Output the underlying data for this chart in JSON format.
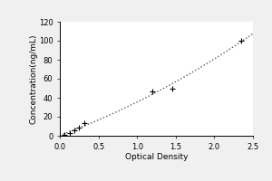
{
  "x_data": [
    0.063,
    0.125,
    0.188,
    0.25,
    0.313,
    1.2,
    1.45,
    2.35
  ],
  "y_data": [
    1.0,
    3.0,
    6.0,
    9.0,
    13.0,
    47.0,
    50.0,
    100.0
  ],
  "xlabel": "Optical Density",
  "ylabel": "Concentration(ng/mL)",
  "xlim": [
    0,
    2.5
  ],
  "ylim": [
    0,
    120
  ],
  "xticks": [
    0.0,
    0.5,
    1.0,
    1.5,
    2.0,
    2.5
  ],
  "yticks": [
    0,
    20,
    40,
    60,
    80,
    100,
    120
  ],
  "marker_color": "#000000",
  "line_color": "#555555",
  "background_color": "#f0f0f0",
  "plot_bg_color": "#ffffff",
  "label_fontsize": 6.5,
  "tick_fontsize": 6,
  "fig_width": 3.0,
  "fig_height": 2.0,
  "dpi": 100
}
